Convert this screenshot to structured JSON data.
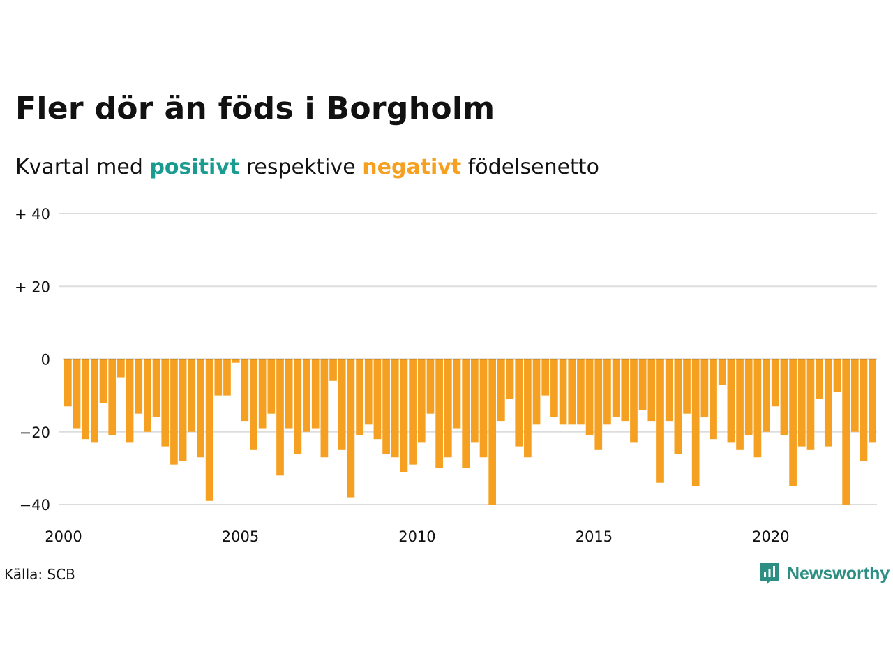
{
  "title": "Fler dör än föds i Borgholm",
  "subtitle": {
    "prefix": "Kvartal med",
    "positive": "positivt",
    "middle": "respektive",
    "negative": "negativt",
    "suffix": "födelsenetto"
  },
  "source": "Källa: SCB",
  "brand": {
    "name": "Newsworthy",
    "icon": "newsworthy-logo-icon"
  },
  "colors": {
    "positive": "#1a9b8f",
    "negative": "#f5a020",
    "grid": "#dddddd",
    "zero_line": "#222222",
    "brand": "#2d8f84"
  },
  "chart_data": {
    "type": "bar",
    "frequency": "quarterly",
    "x_start": 2000,
    "xlim": [
      2000,
      2023
    ],
    "ylim": [
      -40,
      40
    ],
    "grid": true,
    "y_ticks": [
      {
        "value": 40,
        "label": "+ 40"
      },
      {
        "value": 20,
        "label": "+ 20"
      },
      {
        "value": 0,
        "label": "0"
      },
      {
        "value": -20,
        "label": "−20"
      },
      {
        "value": -40,
        "label": "−40"
      }
    ],
    "x_ticks": [
      {
        "value": 2000,
        "label": "2000"
      },
      {
        "value": 2005,
        "label": "2005"
      },
      {
        "value": 2010,
        "label": "2010"
      },
      {
        "value": 2015,
        "label": "2015"
      },
      {
        "value": 2020,
        "label": "2020"
      }
    ],
    "values": [
      -13,
      -19,
      -22,
      -23,
      -12,
      -21,
      -5,
      -23,
      -15,
      -20,
      -16,
      -24,
      -29,
      -28,
      -20,
      -27,
      -39,
      -10,
      -10,
      -1,
      -17,
      -25,
      -19,
      -15,
      -32,
      -19,
      -26,
      -20,
      -19,
      -27,
      -6,
      -25,
      -38,
      -21,
      -18,
      -22,
      -26,
      -27,
      -31,
      -29,
      -23,
      -15,
      -30,
      -27,
      -19,
      -30,
      -23,
      -27,
      -40,
      -17,
      -11,
      -24,
      -27,
      -18,
      -10,
      -16,
      -18,
      -18,
      -18,
      -21,
      -25,
      -18,
      -16,
      -17,
      -23,
      -14,
      -17,
      -34,
      -17,
      -26,
      -15,
      -35,
      -16,
      -22,
      -7,
      -23,
      -25,
      -21,
      -27,
      -20,
      -13,
      -21,
      -35,
      -24,
      -25,
      -11,
      -24,
      -9,
      -40,
      -20,
      -28,
      -23
    ]
  }
}
